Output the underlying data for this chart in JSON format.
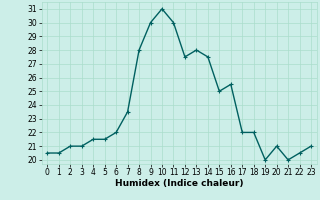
{
  "x": [
    0,
    1,
    2,
    3,
    4,
    5,
    6,
    7,
    8,
    9,
    10,
    11,
    12,
    13,
    14,
    15,
    16,
    17,
    18,
    19,
    20,
    21,
    22,
    23
  ],
  "y": [
    20.5,
    20.5,
    21.0,
    21.0,
    21.5,
    21.5,
    22.0,
    23.5,
    28.0,
    30.0,
    31.0,
    30.0,
    27.5,
    28.0,
    27.5,
    25.0,
    25.5,
    22.0,
    22.0,
    20.0,
    21.0,
    20.0,
    20.5,
    21.0
  ],
  "line_color": "#006060",
  "marker": "+",
  "marker_size": 3,
  "bg_color": "#cceee8",
  "grid_color": "#aaddcc",
  "xlabel": "Humidex (Indice chaleur)",
  "ylim_min": 19.7,
  "ylim_max": 31.5,
  "xlim_min": -0.5,
  "xlim_max": 23.5,
  "yticks": [
    20,
    21,
    22,
    23,
    24,
    25,
    26,
    27,
    28,
    29,
    30,
    31
  ],
  "xticks": [
    0,
    1,
    2,
    3,
    4,
    5,
    6,
    7,
    8,
    9,
    10,
    11,
    12,
    13,
    14,
    15,
    16,
    17,
    18,
    19,
    20,
    21,
    22,
    23
  ],
  "tick_fontsize": 5.5,
  "xlabel_fontsize": 6.5,
  "line_width": 1.0,
  "markeredgewidth": 0.8
}
